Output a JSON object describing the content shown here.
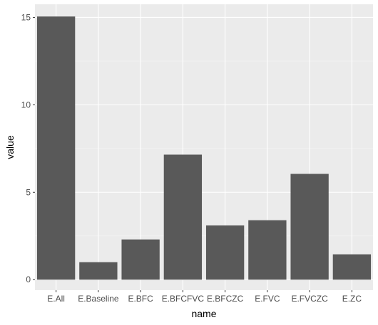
{
  "chart_data": {
    "type": "bar",
    "title": "",
    "xlabel": "name",
    "ylabel": "value",
    "categories": [
      "E.All",
      "E.Baseline",
      "E.BFC",
      "E.BFCFVC",
      "E.BFCZC",
      "E.FVC",
      "E.FVCZC",
      "E.ZC"
    ],
    "values": [
      15.05,
      1.0,
      2.3,
      7.15,
      3.1,
      3.4,
      6.05,
      1.45
    ],
    "ylim": [
      -0.6,
      15.75
    ],
    "yticks": [
      0,
      5,
      10,
      15
    ],
    "grid": true,
    "legend": "none",
    "colors": {
      "panel_background": "#ebebeb",
      "grid_major": "#ffffff",
      "grid_minor": "#f5f5f5",
      "bar_fill": "#595959",
      "tick_text": "#4d4d4d",
      "axis_title_text": "#000000"
    }
  }
}
